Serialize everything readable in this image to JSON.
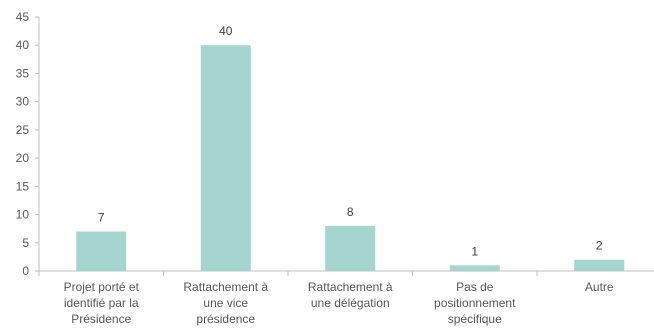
{
  "chart_data": {
    "type": "bar",
    "title": "",
    "xlabel": "",
    "ylabel": "",
    "ylim": [
      0,
      45
    ],
    "yticks": [
      "0",
      "5",
      "10",
      "15",
      "20",
      "25",
      "30",
      "35",
      "40",
      "45"
    ],
    "grid": false,
    "legend": "none",
    "bar_color": "#a6d5cf",
    "categories": [
      [
        "Projet porté et",
        "identifié par la",
        "Présidence"
      ],
      [
        "Rattachement à",
        "une vice",
        "présidence"
      ],
      [
        "Rattachement à",
        "une délégation"
      ],
      [
        "Pas de",
        "positionnement",
        "spécifique"
      ],
      [
        "Autre"
      ]
    ],
    "values": [
      7,
      40,
      8,
      1,
      2
    ],
    "data_labels": [
      "7",
      "40",
      "8",
      "1",
      "2"
    ]
  }
}
